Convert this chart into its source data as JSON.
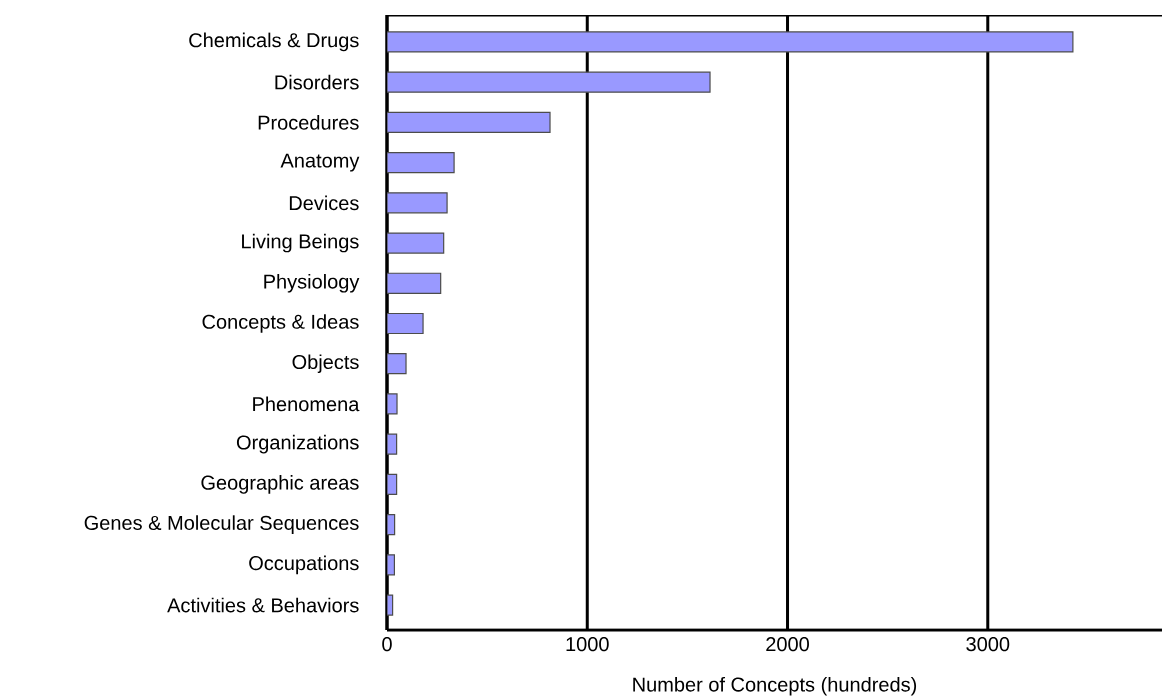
{
  "chart_data": {
    "type": "bar",
    "orientation": "horizontal",
    "xlabel": "Number of Concepts (hundreds)",
    "categories": [
      "Chemicals & Drugs",
      "Disorders",
      "Procedures",
      "Anatomy",
      "Devices",
      "Living Beings",
      "Physiology",
      "Concepts & Ideas",
      "Objects",
      "Phenomena",
      "Organizations",
      "Geographic areas",
      "Genes & Molecular Sequences",
      "Occupations",
      "Activities & Behaviors"
    ],
    "values": [
      3425,
      1613,
      814,
      335,
      300,
      283,
      268,
      180,
      95,
      50,
      48,
      48,
      38,
      37,
      28
    ],
    "color": "#9999ff",
    "xlim": [
      0,
      3870
    ],
    "xticks": [
      0,
      1000,
      2000,
      3000
    ],
    "grid": "x"
  }
}
